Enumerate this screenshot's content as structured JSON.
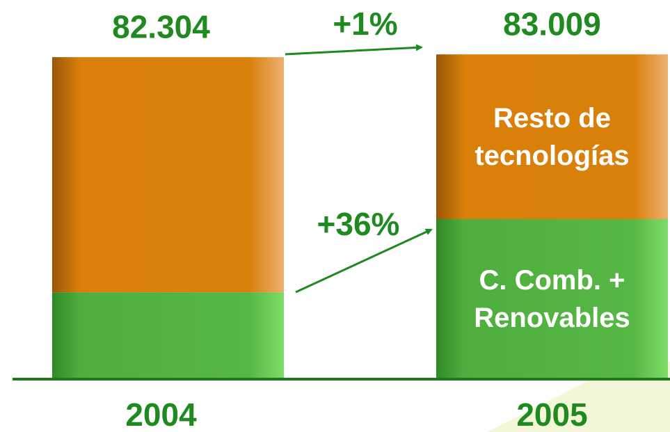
{
  "chart_data": {
    "type": "stacked-bar",
    "categories": [
      "2004",
      "2005"
    ],
    "series": [
      {
        "name": "C. Comb. + Renovables",
        "color": "#4fae3e",
        "values": [
          22200,
          40900
        ]
      },
      {
        "name": "Resto de tecnologías",
        "color": "#d97f0a",
        "values": [
          60104,
          42109
        ]
      }
    ],
    "totals": {
      "values": [
        82304,
        83009
      ],
      "value_labels": [
        "82.304",
        "83.009"
      ]
    },
    "annotations": [
      "+1%",
      "+36%"
    ],
    "ylim": [
      0,
      85000
    ]
  }
}
